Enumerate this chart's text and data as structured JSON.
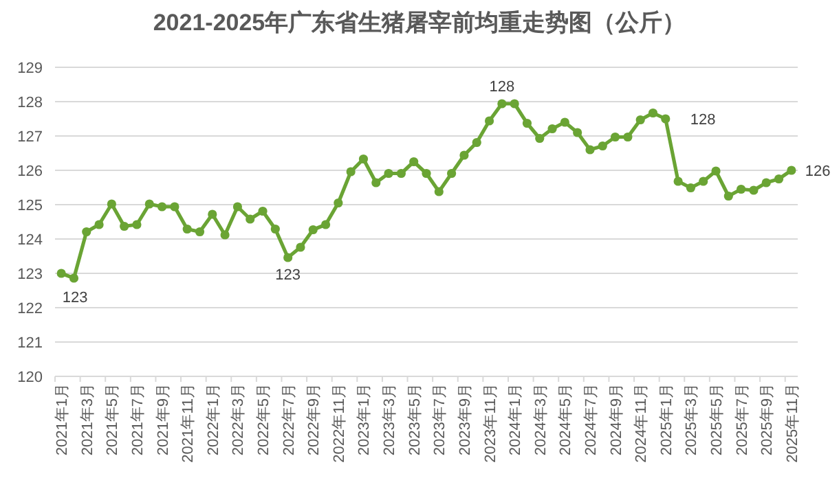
{
  "chart_data": {
    "type": "line",
    "title": "2021-2025年广东省生猪屠宰前均重走势图（公斤）",
    "categories": [
      "2021年1月",
      null,
      "2021年3月",
      null,
      "2021年5月",
      null,
      "2021年7月",
      null,
      "2021年9月",
      null,
      "2021年11月",
      null,
      "2022年1月",
      null,
      "2022年3月",
      null,
      "2022年5月",
      null,
      "2022年7月",
      null,
      "2022年9月",
      null,
      "2022年11月",
      null,
      "2023年1月",
      null,
      "2023年3月",
      null,
      "2023年5月",
      null,
      "2023年7月",
      null,
      "2023年9月",
      null,
      "2023年11月",
      null,
      "2024年1月",
      null,
      "2024年3月",
      null,
      "2024年5月",
      null,
      "2024年7月",
      null,
      "2024年9月",
      null,
      "2024年11月",
      null,
      "2025年1月",
      null,
      "2025年3月",
      null,
      "2025年5月",
      null,
      "2025年7月",
      null,
      "2025年9月",
      null,
      "2025年11月"
    ],
    "series": [
      {
        "color": "#6aa434",
        "values": [
          123.0,
          122.86,
          124.21,
          124.42,
          125.02,
          124.37,
          124.42,
          125.02,
          124.94,
          124.94,
          124.29,
          124.21,
          124.72,
          124.12,
          124.94,
          124.58,
          124.81,
          124.29,
          123.46,
          123.76,
          124.27,
          124.42,
          125.05,
          125.96,
          126.33,
          125.64,
          125.91,
          125.91,
          126.25,
          125.91,
          125.38,
          125.91,
          126.44,
          126.81,
          127.44,
          127.94,
          127.94,
          127.37,
          126.93,
          127.21,
          127.4,
          127.1,
          126.6,
          126.71,
          126.97,
          126.97,
          127.47,
          127.67,
          127.5,
          125.68,
          125.49,
          125.68,
          125.98,
          125.25,
          125.45,
          125.42,
          125.64,
          125.75,
          126.0
        ],
        "value_labels": [
          "123",
          null,
          null,
          null,
          null,
          null,
          null,
          null,
          null,
          null,
          null,
          null,
          null,
          null,
          null,
          null,
          null,
          null,
          "123",
          null,
          null,
          null,
          null,
          null,
          null,
          null,
          null,
          null,
          null,
          null,
          null,
          null,
          null,
          null,
          null,
          "128",
          null,
          null,
          null,
          null,
          null,
          null,
          null,
          null,
          null,
          null,
          null,
          null,
          "128",
          null,
          null,
          null,
          null,
          null,
          null,
          null,
          null,
          null,
          "126"
        ]
      }
    ],
    "ylim": [
      120,
      129
    ],
    "yticks": [
      120,
      121,
      122,
      123,
      124,
      125,
      126,
      127,
      128,
      129
    ],
    "grid": "y",
    "marker": "circle",
    "line_style": "solid"
  }
}
